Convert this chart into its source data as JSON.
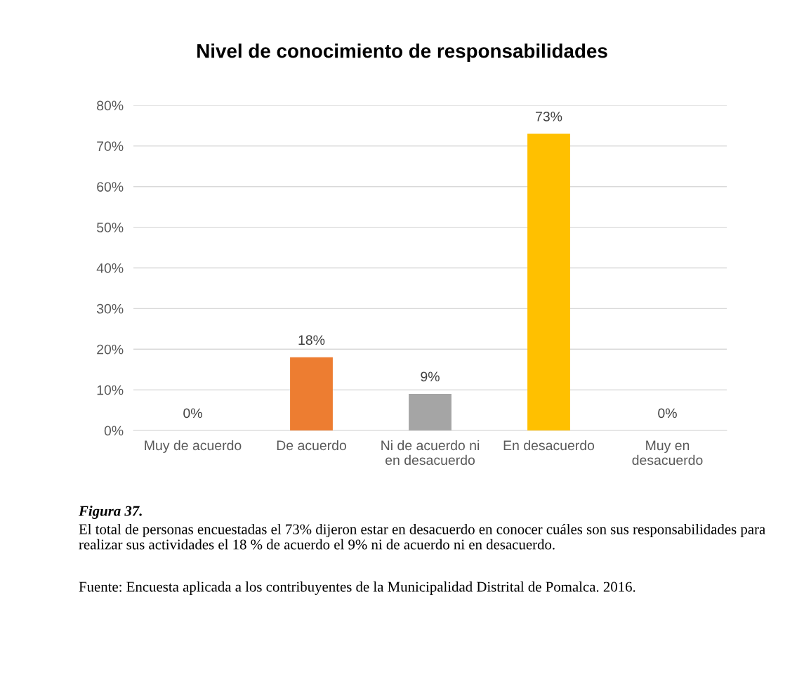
{
  "chart_data": {
    "type": "bar",
    "title": "Nivel de conocimiento de responsabilidades",
    "categories": [
      "Muy de acuerdo",
      "De acuerdo",
      "Ni de acuerdo ni\nen desacuerdo",
      "En desacuerdo",
      "Muy en\ndesacuerdo"
    ],
    "values": [
      0,
      18,
      9,
      73,
      0
    ],
    "colors": [
      "#4472c4",
      "#ed7d31",
      "#a5a5a5",
      "#ffc000",
      "#5b9bd5"
    ],
    "value_labels": [
      "0%",
      "18%",
      "9%",
      "73%",
      "0%"
    ],
    "ylim": [
      0,
      80
    ],
    "yticks": [
      {
        "value": 0,
        "label": "0%"
      },
      {
        "value": 10,
        "label": "10%"
      },
      {
        "value": 20,
        "label": "20%"
      },
      {
        "value": 30,
        "label": "30%"
      },
      {
        "value": 40,
        "label": "40%"
      },
      {
        "value": 50,
        "label": "50%"
      },
      {
        "value": 60,
        "label": "60%"
      },
      {
        "value": 70,
        "label": "70%"
      },
      {
        "value": 80,
        "label": "80%"
      }
    ],
    "grid": "y",
    "annotations": [
      "Figura 37.",
      "El total de personas encuestadas el 73% dijeron estar en desacuerdo en conocer cuáles son sus responsabilidades para realizar sus actividades el 18 % de acuerdo el 9% ni de acuerdo ni en desacuerdo.",
      "Fuente: Encuesta aplicada a los contribuyentes de la Municipalidad Distrital de Pomalca. 2016."
    ]
  }
}
